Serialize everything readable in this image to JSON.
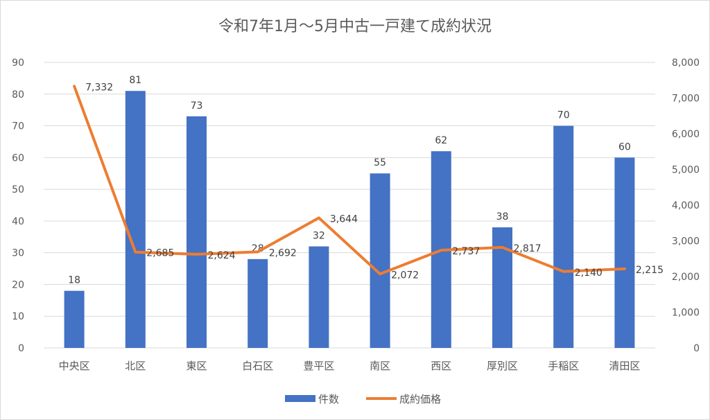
{
  "chart_data": {
    "type": "bar",
    "title": "令和7年1月～5月中古一戸建て成約状況",
    "categories": [
      "中央区",
      "北区",
      "東区",
      "白石区",
      "豊平区",
      "南区",
      "西区",
      "厚別区",
      "手稲区",
      "清田区"
    ],
    "series": [
      {
        "name": "件数",
        "type": "bar",
        "axis": "left",
        "color": "#4472C4",
        "values": [
          18,
          81,
          73,
          28,
          32,
          55,
          62,
          38,
          70,
          60
        ],
        "labels": [
          "18",
          "81",
          "73",
          "28",
          "32",
          "55",
          "62",
          "38",
          "70",
          "60"
        ]
      },
      {
        "name": "成約価格",
        "type": "line",
        "axis": "right",
        "color": "#ED7D31",
        "values": [
          7332,
          2685,
          2624,
          2692,
          3644,
          2072,
          2737,
          2817,
          2140,
          2215
        ],
        "labels": [
          "7,332",
          "2,685",
          "2,624",
          "2,692",
          "3,644",
          "2,072",
          "2,737",
          "2,817",
          "2,140",
          "2,215"
        ]
      }
    ],
    "y_left": {
      "min": 0,
      "max": 90,
      "ticks": [
        "0",
        "10",
        "20",
        "30",
        "40",
        "50",
        "60",
        "70",
        "80",
        "90"
      ]
    },
    "y_right": {
      "min": 0,
      "max": 8000,
      "ticks": [
        "0",
        "1,000",
        "2,000",
        "3,000",
        "4,000",
        "5,000",
        "6,000",
        "7,000",
        "8,000"
      ]
    },
    "grid": true,
    "legend": "bottom"
  }
}
